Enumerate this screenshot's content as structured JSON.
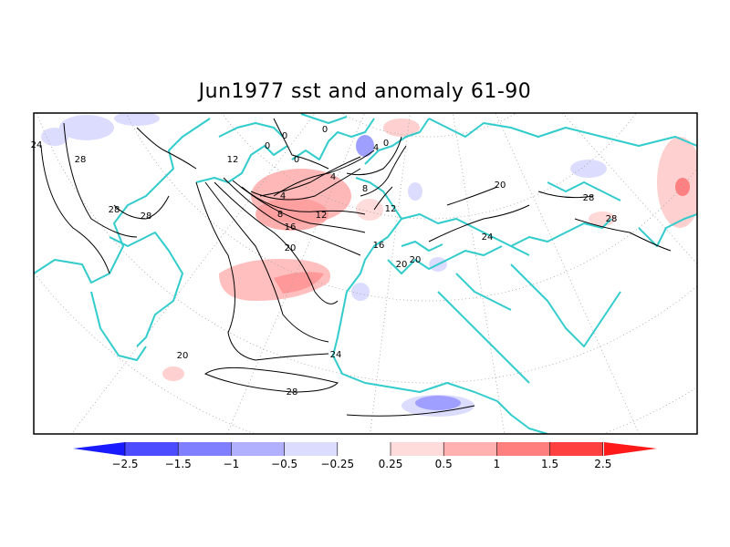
{
  "title": "Jun1977 sst and anomaly 61-90",
  "contour_labels": [
    "24",
    "28",
    "28",
    "28",
    "12",
    "0",
    "0",
    "0",
    "0",
    "4",
    "4",
    "0",
    "8",
    "4",
    "8",
    "12",
    "16",
    "12",
    "16",
    "20",
    "20",
    "20",
    "24",
    "20",
    "24",
    "28",
    "28",
    "28",
    "24",
    "20"
  ],
  "colorbar": {
    "labels": [
      "-2.5",
      "-1.5",
      "-1",
      "-0.5",
      "-0.25",
      "0.25",
      "0.5",
      "1",
      "1.5",
      "2.5"
    ],
    "colors": [
      "#1a1aff",
      "#4d4dff",
      "#7f7fff",
      "#b0b0ff",
      "#dcdcff",
      "#ffffff",
      "#ffdcdc",
      "#ffb0b0",
      "#ff7f7f",
      "#ff4040",
      "#ff1a1a"
    ]
  },
  "colors": {
    "coast": "#33cccc",
    "contour": "#000000",
    "grid": "#999999"
  }
}
